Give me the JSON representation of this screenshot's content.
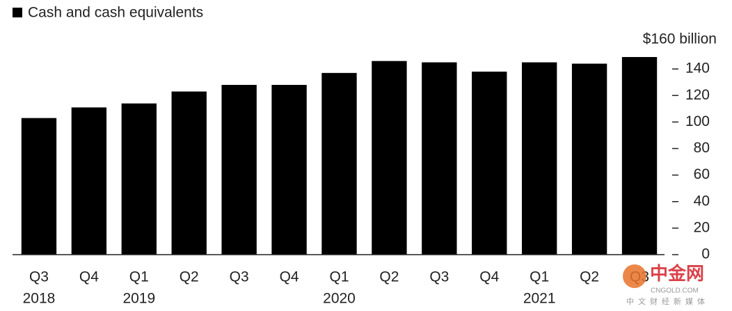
{
  "chart_data": {
    "type": "bar",
    "categories": [
      "Q3",
      "Q4",
      "Q1",
      "Q2",
      "Q3",
      "Q4",
      "Q1",
      "Q2",
      "Q3",
      "Q4",
      "Q1",
      "Q2",
      "Q3"
    ],
    "year_labels": [
      "2018",
      null,
      "2019",
      null,
      null,
      null,
      "2020",
      null,
      null,
      null,
      "2021",
      null,
      null
    ],
    "series": [
      {
        "name": "Cash and cash equivalents",
        "color": "#000000",
        "values": [
          103,
          111,
          114,
          123,
          128,
          128,
          137,
          146,
          145,
          138,
          145,
          144,
          149
        ]
      }
    ],
    "ylim": [
      0,
      160
    ],
    "yticks": [
      0,
      20,
      40,
      60,
      80,
      100,
      120,
      140,
      {
        "value": 160,
        "label": "$160 billion"
      }
    ],
    "legend": "top-left"
  },
  "watermark": {
    "brand": "中金网",
    "site": "CNGOLD.COM",
    "tagline": "中文财经新媒体"
  }
}
